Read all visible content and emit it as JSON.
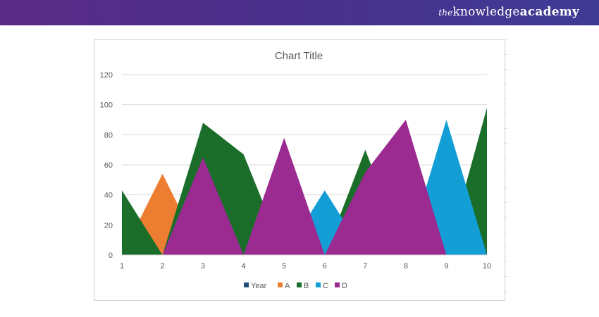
{
  "brand": {
    "the": "the",
    "knowledge": "knowledge",
    "academy": "academy"
  },
  "chart_data": {
    "type": "area",
    "title": "Chart Title",
    "categories": [
      "1",
      "2",
      "3",
      "4",
      "5",
      "6",
      "7",
      "8",
      "9",
      "10"
    ],
    "ylim": [
      0,
      120
    ],
    "yticks": [
      "0",
      "20",
      "40",
      "60",
      "80",
      "100",
      "120"
    ],
    "grid": true,
    "legend_position": "bottom",
    "series": [
      {
        "name": "Year",
        "color": "#1f4e79",
        "values": [
          0,
          0,
          0,
          0,
          0,
          0,
          0,
          0,
          0,
          0
        ]
      },
      {
        "name": "A",
        "color": "#ed7d31",
        "values": [
          0,
          54,
          0,
          0,
          0,
          0,
          0,
          0,
          0,
          0
        ]
      },
      {
        "name": "B",
        "color": "#1a6e2a",
        "values": [
          43,
          0,
          88,
          67,
          0,
          0,
          70,
          0,
          0,
          98
        ]
      },
      {
        "name": "C",
        "color": "#139ed6",
        "values": [
          0,
          0,
          0,
          0,
          0,
          43,
          0,
          0,
          90,
          0
        ]
      },
      {
        "name": "D",
        "color": "#9b2a91",
        "values": [
          0,
          0,
          65,
          0,
          78,
          0,
          55,
          90,
          0,
          0
        ]
      }
    ]
  }
}
